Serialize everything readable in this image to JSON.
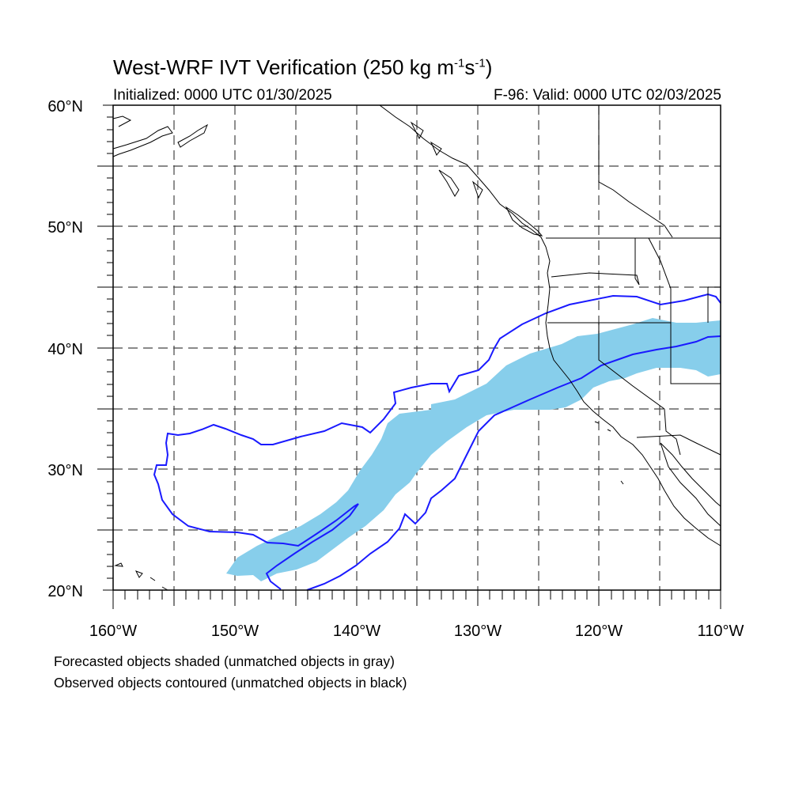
{
  "title": {
    "main": "West-WRF IVT Verification (250 kg m",
    "sup1": "-1",
    "mid": "s",
    "sup2": "-1",
    "end": ")"
  },
  "subtitle_left": "Initialized: 0000 UTC 01/30/2025",
  "subtitle_right": "F-96: Valid: 0000 UTC 02/03/2025",
  "lat_labels": [
    "60°N",
    "50°N",
    "40°N",
    "30°N",
    "20°N"
  ],
  "lon_labels": [
    "160°W",
    "150°W",
    "140°W",
    "130°W",
    "120°W",
    "110°W"
  ],
  "footnotes": [
    "Forecasted objects shaded (unmatched objects in gray)",
    "Observed objects contoured (unmatched objects in black)"
  ],
  "map": {
    "lat_range": [
      20,
      60
    ],
    "lon_range": [
      -160,
      -110
    ],
    "grid_step_deg": 5,
    "forecast_color": "#87ceeb",
    "observed_color": "#1a1aff",
    "coast_color": "#000000",
    "grid_style": "dashed"
  }
}
